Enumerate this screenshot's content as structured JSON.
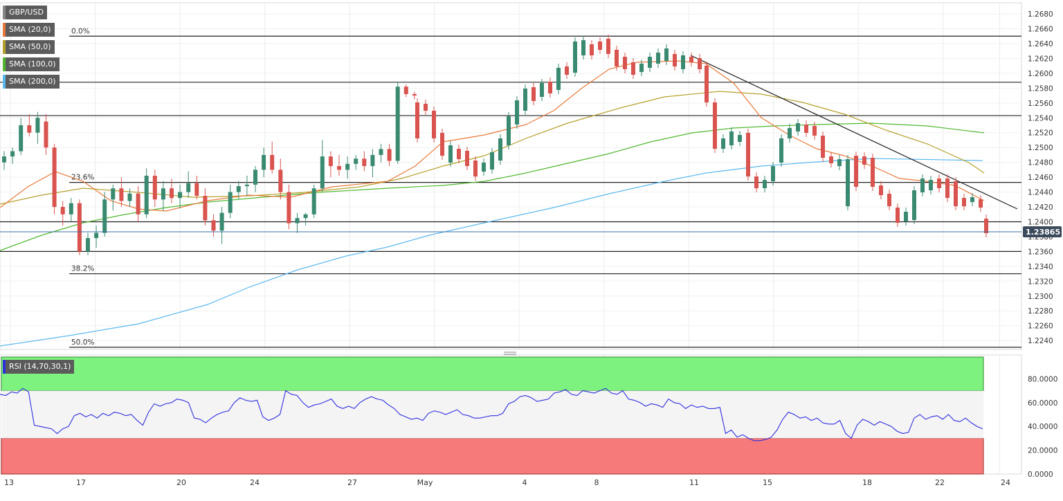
{
  "chart_data": [
    {
      "type": "candlestick",
      "symbol": "GBP/USD",
      "price_label": "1.23865",
      "price_value": 1.23865,
      "ylim": [
        1.2228,
        1.2695
      ],
      "y_ticks": [
        "1.2680",
        "1.2660",
        "1.2640",
        "1.2620",
        "1.2600",
        "1.2580",
        "1.2560",
        "1.2540",
        "1.2520",
        "1.2500",
        "1.2480",
        "1.2460",
        "1.2440",
        "1.2420",
        "1.2400",
        "1.2380",
        "1.2360",
        "1.2340",
        "1.2320",
        "1.2300",
        "1.2280",
        "1.2260",
        "1.2240"
      ],
      "x_ticks": [
        {
          "label": "13",
          "i": 0
        },
        {
          "label": "17",
          "i": 6
        },
        {
          "label": "20",
          "i": 12
        },
        {
          "label": "24",
          "i": 18
        },
        {
          "label": "27",
          "i": 24
        },
        {
          "label": "May",
          "i": 30
        },
        {
          "label": "4",
          "i": 36
        },
        {
          "label": "8",
          "i": 42
        },
        {
          "label": "11",
          "i": 48
        },
        {
          "label": "15",
          "i": 54
        },
        {
          "label": "18",
          "i": 60
        },
        {
          "label": "22",
          "i": 66
        },
        {
          "label": "24",
          "i": 70
        }
      ],
      "indicators": [
        {
          "name": "SMA (20,0)",
          "color": "#e8793a"
        },
        {
          "name": "SMA (50,0)",
          "color": "#b5a02a"
        },
        {
          "name": "SMA (100,0)",
          "color": "#4fb82e"
        },
        {
          "name": "SMA (200,0)",
          "color": "#5ab8f0"
        }
      ],
      "colors": {
        "up": "#3a8a72",
        "down": "#d9534f"
      },
      "fib_levels": [
        {
          "label": "0.0%",
          "value": 1.265
        },
        {
          "label": "23.6%",
          "value": 1.2453
        },
        {
          "label": "38.2%",
          "value": 1.233
        },
        {
          "label": "50.0%",
          "value": 1.2231
        }
      ],
      "h_lines": [
        1.2588,
        1.2543,
        1.24,
        1.236
      ],
      "trendline": {
        "from_i": 48,
        "from_v": 1.2628,
        "to_i": 71,
        "to_v": 1.242
      },
      "candles": [
        {
          "o": 1.248,
          "h": 1.2495,
          "l": 1.247,
          "c": 1.2488
        },
        {
          "o": 1.2488,
          "h": 1.25,
          "l": 1.2478,
          "c": 1.2495
        },
        {
          "o": 1.2495,
          "h": 1.254,
          "l": 1.249,
          "c": 1.253
        },
        {
          "o": 1.253,
          "h": 1.2545,
          "l": 1.2515,
          "c": 1.252
        },
        {
          "o": 1.252,
          "h": 1.2548,
          "l": 1.2505,
          "c": 1.254
        },
        {
          "o": 1.2535,
          "h": 1.2545,
          "l": 1.249,
          "c": 1.25
        },
        {
          "o": 1.25,
          "h": 1.2505,
          "l": 1.241,
          "c": 1.242
        },
        {
          "o": 1.242,
          "h": 1.2428,
          "l": 1.2395,
          "c": 1.241
        },
        {
          "o": 1.241,
          "h": 1.2432,
          "l": 1.24,
          "c": 1.2425
        },
        {
          "o": 1.2425,
          "h": 1.243,
          "l": 1.2355,
          "c": 1.236
        },
        {
          "o": 1.236,
          "h": 1.2385,
          "l": 1.2355,
          "c": 1.2378
        },
        {
          "o": 1.2378,
          "h": 1.2395,
          "l": 1.2365,
          "c": 1.2385
        },
        {
          "o": 1.2385,
          "h": 1.244,
          "l": 1.238,
          "c": 1.243
        },
        {
          "o": 1.243,
          "h": 1.245,
          "l": 1.2415,
          "c": 1.2445
        },
        {
          "o": 1.2445,
          "h": 1.246,
          "l": 1.242,
          "c": 1.2428
        },
        {
          "o": 1.2428,
          "h": 1.2445,
          "l": 1.242,
          "c": 1.2438
        },
        {
          "o": 1.2438,
          "h": 1.2448,
          "l": 1.24,
          "c": 1.241
        },
        {
          "o": 1.241,
          "h": 1.2472,
          "l": 1.2405,
          "c": 1.2462
        },
        {
          "o": 1.2462,
          "h": 1.247,
          "l": 1.242,
          "c": 1.243
        },
        {
          "o": 1.243,
          "h": 1.2455,
          "l": 1.2415,
          "c": 1.2445
        },
        {
          "o": 1.2445,
          "h": 1.2458,
          "l": 1.2425,
          "c": 1.2432
        },
        {
          "o": 1.2432,
          "h": 1.245,
          "l": 1.2418,
          "c": 1.244
        },
        {
          "o": 1.244,
          "h": 1.2468,
          "l": 1.2432,
          "c": 1.2452
        },
        {
          "o": 1.2452,
          "h": 1.2462,
          "l": 1.243,
          "c": 1.2435
        },
        {
          "o": 1.2435,
          "h": 1.2445,
          "l": 1.2395,
          "c": 1.2402
        },
        {
          "o": 1.2402,
          "h": 1.241,
          "l": 1.238,
          "c": 1.2388
        },
        {
          "o": 1.2388,
          "h": 1.242,
          "l": 1.237,
          "c": 1.2412
        },
        {
          "o": 1.2412,
          "h": 1.245,
          "l": 1.2405,
          "c": 1.244
        },
        {
          "o": 1.244,
          "h": 1.2455,
          "l": 1.243,
          "c": 1.2448
        },
        {
          "o": 1.2448,
          "h": 1.2462,
          "l": 1.2435,
          "c": 1.245
        },
        {
          "o": 1.245,
          "h": 1.2475,
          "l": 1.244,
          "c": 1.247
        },
        {
          "o": 1.247,
          "h": 1.25,
          "l": 1.246,
          "c": 1.249
        },
        {
          "o": 1.249,
          "h": 1.2508,
          "l": 1.2465,
          "c": 1.247
        },
        {
          "o": 1.247,
          "h": 1.2485,
          "l": 1.243,
          "c": 1.244
        },
        {
          "o": 1.244,
          "h": 1.245,
          "l": 1.239,
          "c": 1.2398
        },
        {
          "o": 1.2398,
          "h": 1.2412,
          "l": 1.2385,
          "c": 1.2405
        },
        {
          "o": 1.2405,
          "h": 1.2412,
          "l": 1.2395,
          "c": 1.241
        },
        {
          "o": 1.241,
          "h": 1.245,
          "l": 1.2405,
          "c": 1.2445
        },
        {
          "o": 1.2445,
          "h": 1.251,
          "l": 1.244,
          "c": 1.2488
        },
        {
          "o": 1.2488,
          "h": 1.2495,
          "l": 1.246,
          "c": 1.2475
        },
        {
          "o": 1.2475,
          "h": 1.249,
          "l": 1.2462,
          "c": 1.247
        },
        {
          "o": 1.247,
          "h": 1.2488,
          "l": 1.2458,
          "c": 1.2478
        },
        {
          "o": 1.2478,
          "h": 1.249,
          "l": 1.247,
          "c": 1.2485
        },
        {
          "o": 1.2485,
          "h": 1.2495,
          "l": 1.2468,
          "c": 1.2475
        },
        {
          "o": 1.2475,
          "h": 1.2498,
          "l": 1.246,
          "c": 1.249
        },
        {
          "o": 1.249,
          "h": 1.2505,
          "l": 1.248,
          "c": 1.2498
        },
        {
          "o": 1.2498,
          "h": 1.2505,
          "l": 1.2475,
          "c": 1.2482
        },
        {
          "o": 1.2482,
          "h": 1.2588,
          "l": 1.2478,
          "c": 1.2582
        },
        {
          "o": 1.2582,
          "h": 1.2585,
          "l": 1.2568,
          "c": 1.2572
        },
        {
          "o": 1.2572,
          "h": 1.2575,
          "l": 1.2565,
          "c": 1.257
        }
      ],
      "rsi": {
        "name": "RSI (14,70,30,1)",
        "ylim": [
          0,
          100
        ],
        "y_ticks": [
          "80.0000",
          "60.0000",
          "40.0000",
          "20.0000",
          "0.0000"
        ],
        "overbought": 70,
        "oversold": 30,
        "line_color": "#2f2fe0",
        "overbought_color": "#7ef27e",
        "oversold_color": "#f77a7a",
        "values": [
          67,
          66,
          69,
          68,
          72,
          69,
          41,
          40,
          39,
          38,
          34,
          38,
          40,
          49,
          51,
          48,
          50,
          47,
          51,
          49,
          52,
          51,
          49,
          50,
          45,
          41,
          52,
          59,
          57,
          59,
          60,
          63,
          62,
          60,
          47,
          46,
          43,
          47,
          50,
          52,
          53,
          60,
          64,
          62,
          61,
          62,
          48,
          45,
          47,
          50,
          70,
          67,
          66,
          60,
          56,
          58,
          59,
          61,
          63,
          57,
          55,
          57,
          55,
          60,
          63,
          65,
          63,
          62,
          58,
          55,
          50,
          48,
          46,
          47,
          45,
          51,
          53,
          52,
          50,
          52,
          54,
          50,
          49,
          47,
          47,
          48,
          49,
          49,
          51,
          59,
          61,
          65,
          66,
          64,
          61,
          62,
          63,
          68,
          69,
          71,
          67,
          66,
          70,
          69,
          68,
          70,
          72,
          68,
          67,
          70,
          63,
          62,
          60,
          57,
          59,
          58,
          56,
          63,
          60,
          59,
          55,
          58,
          56,
          57,
          55,
          55,
          56,
          34,
          37,
          31,
          33,
          30,
          28,
          28,
          29,
          31,
          37,
          46,
          52,
          50,
          47,
          48,
          45,
          47,
          43,
          42,
          42,
          45,
          34,
          30,
          41,
          46,
          44,
          41,
          44,
          42,
          40,
          36,
          34,
          35,
          47,
          50,
          46,
          48,
          49,
          46,
          50,
          45,
          44,
          47,
          43,
          40,
          38
        ]
      }
    }
  ]
}
